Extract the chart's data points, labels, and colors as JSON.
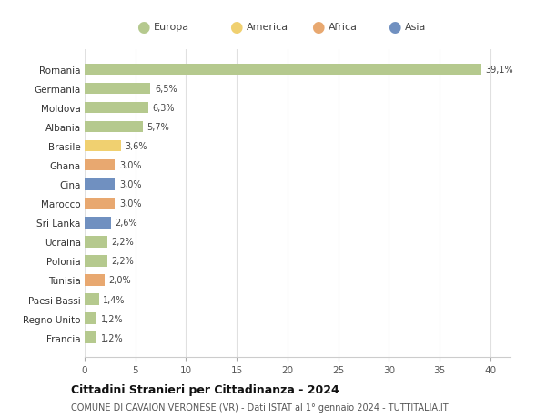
{
  "countries": [
    "Romania",
    "Germania",
    "Moldova",
    "Albania",
    "Brasile",
    "Ghana",
    "Cina",
    "Marocco",
    "Sri Lanka",
    "Ucraina",
    "Polonia",
    "Tunisia",
    "Paesi Bassi",
    "Regno Unito",
    "Francia"
  ],
  "values": [
    39.1,
    6.5,
    6.3,
    5.7,
    3.6,
    3.0,
    3.0,
    3.0,
    2.6,
    2.2,
    2.2,
    2.0,
    1.4,
    1.2,
    1.2
  ],
  "labels": [
    "39,1%",
    "6,5%",
    "6,3%",
    "5,7%",
    "3,6%",
    "3,0%",
    "3,0%",
    "3,0%",
    "2,6%",
    "2,2%",
    "2,2%",
    "2,0%",
    "1,4%",
    "1,2%",
    "1,2%"
  ],
  "continents": [
    "Europa",
    "Europa",
    "Europa",
    "Europa",
    "America",
    "Africa",
    "Asia",
    "Africa",
    "Asia",
    "Europa",
    "Europa",
    "Africa",
    "Europa",
    "Europa",
    "Europa"
  ],
  "colors": {
    "Europa": "#b5c98e",
    "America": "#f0d070",
    "Africa": "#e8a870",
    "Asia": "#7090c0"
  },
  "xlim": [
    0,
    42
  ],
  "xticks": [
    0,
    5,
    10,
    15,
    20,
    25,
    30,
    35,
    40
  ],
  "title": "Cittadini Stranieri per Cittadinanza - 2024",
  "subtitle": "COMUNE DI CAVAION VERONESE (VR) - Dati ISTAT al 1° gennaio 2024 - TUTTITALIA.IT",
  "background_color": "#ffffff",
  "grid_color": "#e0e0e0",
  "bar_height": 0.6,
  "figsize": [
    6.0,
    4.6
  ],
  "dpi": 100
}
